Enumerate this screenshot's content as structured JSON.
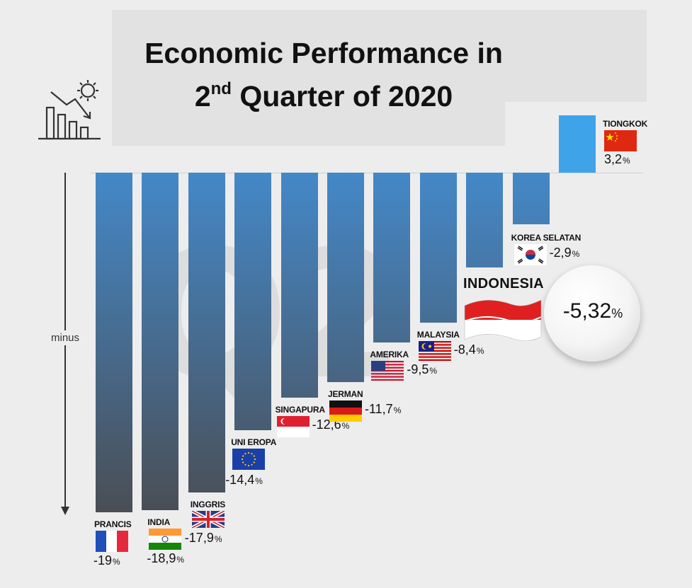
{
  "title": {
    "line1": "Economic Performance in",
    "q_num": "2",
    "q_sup": "nd",
    "line2_rest": "Quarter of 2020"
  },
  "watermark": "Q2",
  "axis": {
    "minus_label": "minus"
  },
  "chart_data": {
    "type": "bar",
    "title": "Economic Performance in 2nd Quarter of 2020",
    "xlabel": "",
    "ylabel": "minus",
    "ylim": [
      -19,
      3.2
    ],
    "grid": false,
    "categories": [
      "PRANCIS",
      "INDIA",
      "INGGRIS",
      "UNI EROPA",
      "SINGAPURA",
      "JERMAN",
      "AMERIKA",
      "MALAYSIA",
      "INDONESIA",
      "KOREA SELATAN",
      "TIONGKOK"
    ],
    "values": [
      -19,
      -18.9,
      -17.9,
      -14.4,
      -12.6,
      -11.7,
      -9.5,
      -8.4,
      -5.32,
      -2.9,
      3.2
    ],
    "labels": [
      "-19",
      "-18,9",
      "-17,9",
      "-14,4",
      "-12,6",
      "-11,7",
      "-9,5",
      "-8,4",
      "-5,32",
      "-2,9",
      "3,2"
    ],
    "unit": "%",
    "highlight": "INDONESIA",
    "colors": {
      "negative_top": "#4488c8",
      "negative_bottom": "#4a4e55",
      "positive": "#3fa3ea"
    }
  },
  "icons": {
    "chart": "declining-bar-chart-icon",
    "flags": [
      "france-flag-icon",
      "india-flag-icon",
      "uk-flag-icon",
      "eu-flag-icon",
      "singapore-flag-icon",
      "germany-flag-icon",
      "usa-flag-icon",
      "malaysia-flag-icon",
      "indonesia-flag-icon",
      "south-korea-flag-icon",
      "china-flag-icon"
    ]
  }
}
